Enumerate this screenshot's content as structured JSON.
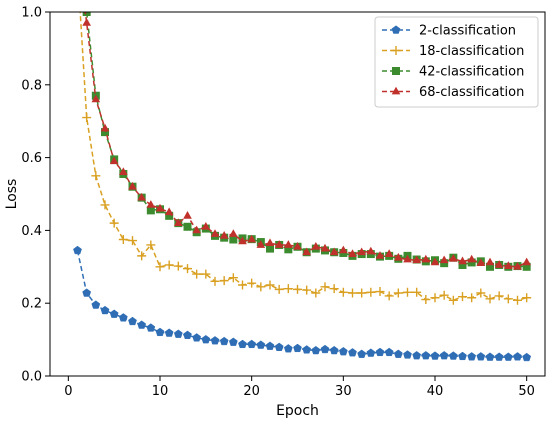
{
  "chart_data": {
    "type": "line",
    "title": "",
    "xlabel": "Epoch",
    "ylabel": "Loss",
    "xlim": [
      -2,
      52
    ],
    "ylim": [
      0.0,
      1.0
    ],
    "xticks": [
      0,
      10,
      20,
      30,
      40,
      50
    ],
    "xtick_labels": [
      "0",
      "10",
      "20",
      "30",
      "40",
      "50"
    ],
    "yticks": [
      0.0,
      0.2,
      0.4,
      0.6,
      0.8,
      1.0
    ],
    "ytick_labels": [
      "0.0",
      "0.2",
      "0.4",
      "0.6",
      "0.8",
      "1.0"
    ],
    "grid": false,
    "legend_position": "top-right",
    "x": [
      1,
      2,
      3,
      4,
      5,
      6,
      7,
      8,
      9,
      10,
      11,
      12,
      13,
      14,
      15,
      16,
      17,
      18,
      19,
      20,
      21,
      22,
      23,
      24,
      25,
      26,
      27,
      28,
      29,
      30,
      31,
      32,
      33,
      34,
      35,
      36,
      37,
      38,
      39,
      40,
      41,
      42,
      43,
      44,
      45,
      46,
      47,
      48,
      49,
      50
    ],
    "series": [
      {
        "name": "2-classification",
        "color": "#2f6eb5",
        "marker": "pentagon",
        "values": [
          0.345,
          0.228,
          0.195,
          0.18,
          0.17,
          0.16,
          0.15,
          0.14,
          0.132,
          0.12,
          0.118,
          0.115,
          0.112,
          0.105,
          0.1,
          0.097,
          0.095,
          0.093,
          0.087,
          0.087,
          0.085,
          0.082,
          0.079,
          0.075,
          0.076,
          0.072,
          0.07,
          0.073,
          0.07,
          0.067,
          0.064,
          0.06,
          0.063,
          0.065,
          0.065,
          0.06,
          0.058,
          0.056,
          0.056,
          0.055,
          0.056,
          0.055,
          0.054,
          0.053,
          0.053,
          0.052,
          0.052,
          0.052,
          0.053,
          0.051
        ]
      },
      {
        "name": "18-classification",
        "color": "#d9a021",
        "marker": "plus",
        "values": [
          1.12,
          0.71,
          0.55,
          0.47,
          0.42,
          0.375,
          0.372,
          0.33,
          0.36,
          0.3,
          0.305,
          0.302,
          0.295,
          0.28,
          0.28,
          0.26,
          0.262,
          0.27,
          0.25,
          0.255,
          0.245,
          0.25,
          0.238,
          0.24,
          0.238,
          0.236,
          0.228,
          0.245,
          0.24,
          0.23,
          0.228,
          0.228,
          0.23,
          0.232,
          0.22,
          0.228,
          0.23,
          0.23,
          0.21,
          0.215,
          0.222,
          0.208,
          0.218,
          0.215,
          0.228,
          0.212,
          0.22,
          0.212,
          0.208,
          0.215
        ]
      },
      {
        "name": "42-classification",
        "color": "#3c8c2f",
        "marker": "square",
        "values": [
          1.15,
          1.0,
          0.77,
          0.67,
          0.595,
          0.555,
          0.52,
          0.49,
          0.455,
          0.458,
          0.44,
          0.42,
          0.41,
          0.395,
          0.405,
          0.385,
          0.38,
          0.375,
          0.378,
          0.376,
          0.368,
          0.35,
          0.36,
          0.348,
          0.355,
          0.34,
          0.35,
          0.345,
          0.34,
          0.338,
          0.33,
          0.335,
          0.335,
          0.328,
          0.33,
          0.322,
          0.33,
          0.32,
          0.315,
          0.318,
          0.31,
          0.325,
          0.305,
          0.312,
          0.315,
          0.3,
          0.305,
          0.3,
          0.302,
          0.3
        ]
      },
      {
        "name": "68-classification",
        "color": "#c0312c",
        "marker": "triangle",
        "values": [
          1.16,
          0.97,
          0.76,
          0.68,
          0.59,
          0.56,
          0.52,
          0.49,
          0.47,
          0.46,
          0.45,
          0.42,
          0.44,
          0.4,
          0.41,
          0.39,
          0.385,
          0.39,
          0.37,
          0.375,
          0.36,
          0.365,
          0.36,
          0.36,
          0.355,
          0.34,
          0.355,
          0.35,
          0.34,
          0.345,
          0.335,
          0.34,
          0.342,
          0.33,
          0.335,
          0.325,
          0.32,
          0.318,
          0.32,
          0.312,
          0.318,
          0.322,
          0.315,
          0.32,
          0.31,
          0.312,
          0.305,
          0.302,
          0.3,
          0.312
        ]
      }
    ]
  }
}
